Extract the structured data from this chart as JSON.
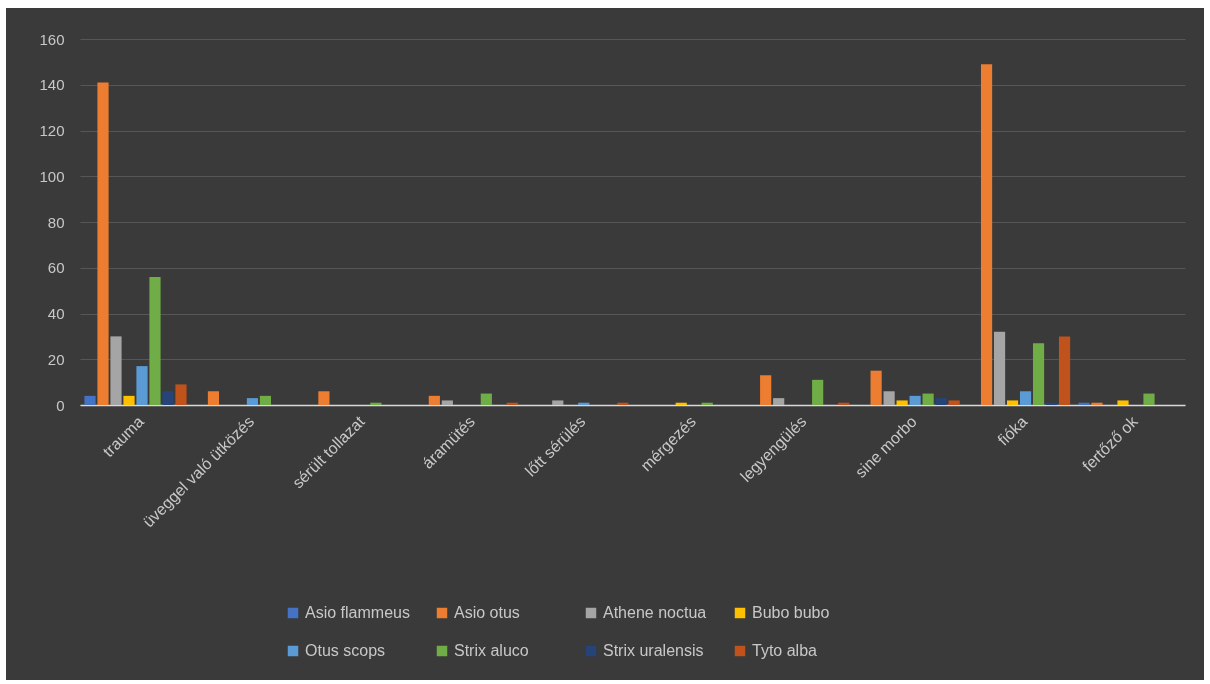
{
  "chart_data": {
    "type": "bar",
    "categories": [
      "trauma",
      "üveggel való ütközés",
      "sérült tollazat",
      "áramütés",
      "lőtt sérülés",
      "mérgezés",
      "legyengülés",
      "sine morbo",
      "fióka",
      "fertőző ok"
    ],
    "series": [
      {
        "name": "Asio flammeus",
        "color": "#4472c4",
        "values": [
          4,
          null,
          null,
          null,
          null,
          null,
          null,
          null,
          null,
          1
        ]
      },
      {
        "name": "Asio otus",
        "color": "#ed7d31",
        "values": [
          141,
          6,
          6,
          4,
          null,
          null,
          13,
          15,
          149,
          1
        ]
      },
      {
        "name": "Athene noctua",
        "color": "#a5a5a5",
        "values": [
          30,
          null,
          null,
          2,
          2,
          null,
          3,
          6,
          32,
          null
        ]
      },
      {
        "name": "Bubo bubo",
        "color": "#ffc000",
        "values": [
          4,
          null,
          null,
          null,
          null,
          1,
          null,
          2,
          2,
          2
        ]
      },
      {
        "name": "Otus scops",
        "color": "#5b9bd5",
        "values": [
          17,
          3,
          null,
          null,
          1,
          null,
          null,
          4,
          6,
          null
        ]
      },
      {
        "name": "Strix aluco",
        "color": "#70ad47",
        "values": [
          56,
          4,
          1,
          5,
          null,
          1,
          11,
          5,
          27,
          5
        ]
      },
      {
        "name": "Strix uralensis",
        "color": "#264478",
        "values": [
          6,
          null,
          null,
          null,
          null,
          null,
          null,
          3,
          1,
          null
        ]
      },
      {
        "name": "Tyto alba",
        "color": "#c0531b",
        "values": [
          9,
          null,
          null,
          1,
          1,
          null,
          1,
          2,
          30,
          null
        ]
      }
    ],
    "ylim": [
      0,
      160
    ],
    "yticks": [
      0,
      20,
      40,
      60,
      80,
      100,
      120,
      140,
      160
    ],
    "grid": "y",
    "legend": "bottom"
  }
}
